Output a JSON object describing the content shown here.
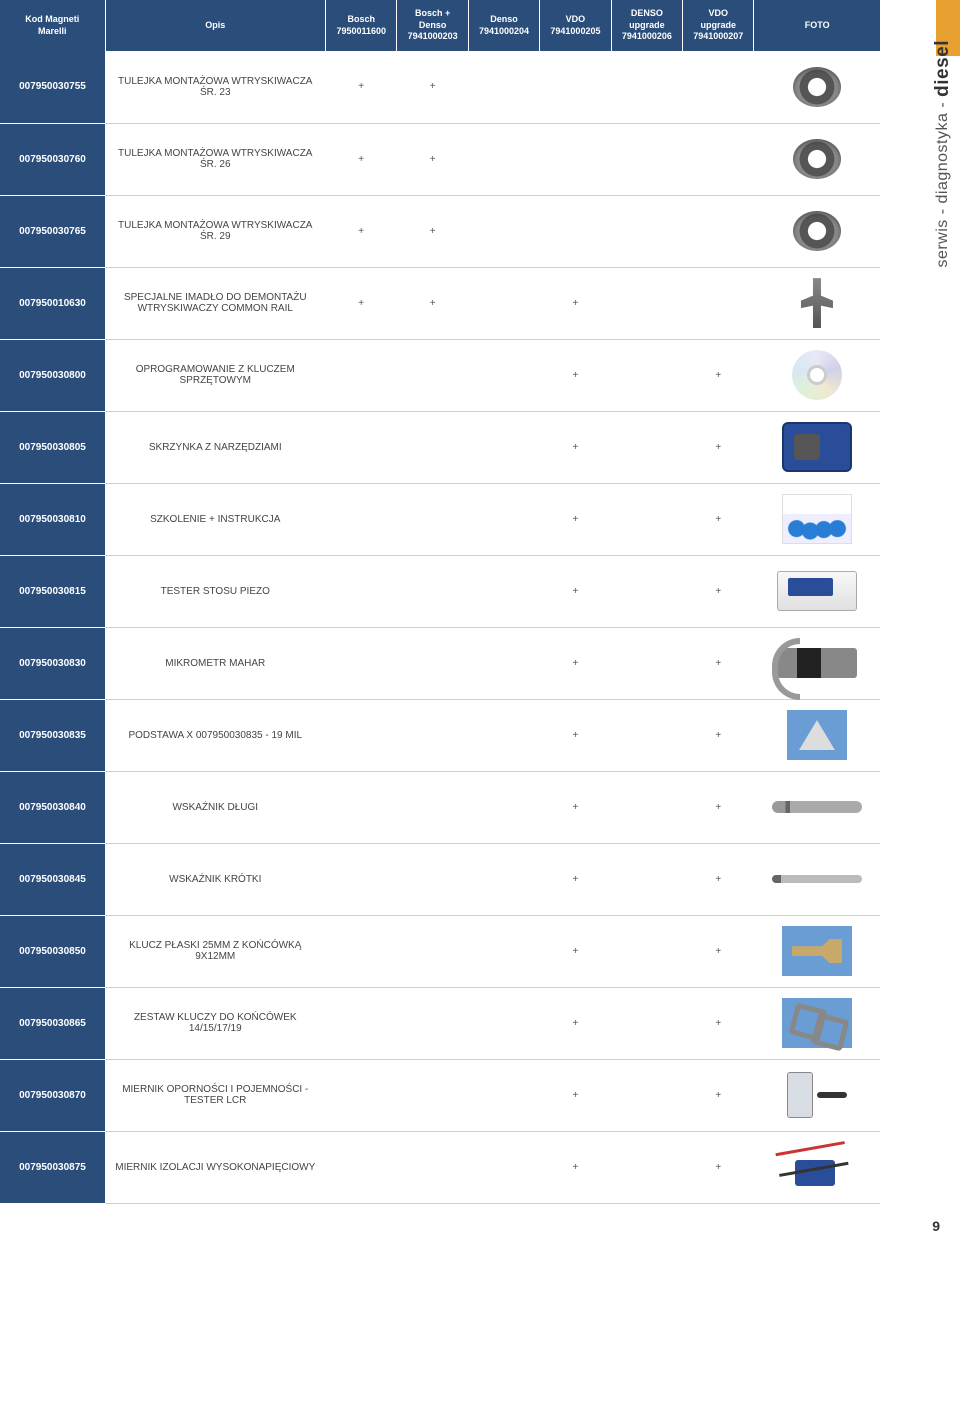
{
  "page_number": "9",
  "side_label_prefix": "serwis - diagnostyka - ",
  "side_label_bold": "diesel",
  "headers": {
    "code": "Kod Magneti\nMarelli",
    "desc": "Opis",
    "c1": "Bosch\n7950011600",
    "c2": "Bosch +\nDenso\n7941000203",
    "c3": "Denso\n7941000204",
    "c4": "VDO\n7941000205",
    "c5": "DENSO\nupgrade\n7941000206",
    "c6": "VDO\nupgrade\n7941000207",
    "foto": "FOTO"
  },
  "rows": [
    {
      "code": "007950030755",
      "desc": "TULEJKA MONTAŻOWA WTRYSKIWACZA ŚR. 23",
      "c1": "+",
      "c2": "+",
      "c3": "",
      "c4": "",
      "c5": "",
      "c6": "",
      "icon": "ring"
    },
    {
      "code": "007950030760",
      "desc": "TULEJKA MONTAŻOWA WTRYSKIWACZA ŚR. 26",
      "c1": "+",
      "c2": "+",
      "c3": "",
      "c4": "",
      "c5": "",
      "c6": "",
      "icon": "ring"
    },
    {
      "code": "007950030765",
      "desc": "TULEJKA MONTAŻOWA WTRYSKIWACZA ŚR. 29",
      "c1": "+",
      "c2": "+",
      "c3": "",
      "c4": "",
      "c5": "",
      "c6": "",
      "icon": "ring"
    },
    {
      "code": "007950010630",
      "desc": "SPECJALNE IMADŁO DO DEMONTAŻU WTRYSKIWACZY COMMON RAIL",
      "c1": "+",
      "c2": "+",
      "c3": "",
      "c4": "+",
      "c5": "",
      "c6": "",
      "icon": "clamp"
    },
    {
      "code": "007950030800",
      "desc": "OPROGRAMOWANIE Z KLUCZEM SPRZĘTOWYM",
      "c1": "",
      "c2": "",
      "c3": "",
      "c4": "+",
      "c5": "",
      "c6": "+",
      "icon": "cd"
    },
    {
      "code": "007950030805",
      "desc": "SKRZYNKA Z NARZĘDZIAMI",
      "c1": "",
      "c2": "",
      "c3": "",
      "c4": "+",
      "c5": "",
      "c6": "+",
      "icon": "case"
    },
    {
      "code": "007950030810",
      "desc": "SZKOLENIE + INSTRUKCJA",
      "c1": "",
      "c2": "",
      "c3": "",
      "c4": "+",
      "c5": "",
      "c6": "+",
      "icon": "training"
    },
    {
      "code": "007950030815",
      "desc": "TESTER STOSU PIEZO",
      "c1": "",
      "c2": "",
      "c3": "",
      "c4": "+",
      "c5": "",
      "c6": "+",
      "icon": "tester"
    },
    {
      "code": "007950030830",
      "desc": "MIKROMETR MAHAR",
      "c1": "",
      "c2": "",
      "c3": "",
      "c4": "+",
      "c5": "",
      "c6": "+",
      "icon": "micrometer"
    },
    {
      "code": "007950030835",
      "desc": "PODSTAWA X 007950030835 - 19 MIL",
      "c1": "",
      "c2": "",
      "c3": "",
      "c4": "+",
      "c5": "",
      "c6": "+",
      "icon": "base"
    },
    {
      "code": "007950030840",
      "desc": "WSKAŹNIK DŁUGI",
      "c1": "",
      "c2": "",
      "c3": "",
      "c4": "+",
      "c5": "",
      "c6": "+",
      "icon": "rod-long"
    },
    {
      "code": "007950030845",
      "desc": "WSKAŹNIK KRÓTKI",
      "c1": "",
      "c2": "",
      "c3": "",
      "c4": "+",
      "c5": "",
      "c6": "+",
      "icon": "rod-short"
    },
    {
      "code": "007950030850",
      "desc": "KLUCZ PŁASKI 25MM Z KOŃCÓWKĄ 9X12MM",
      "c1": "",
      "c2": "",
      "c3": "",
      "c4": "+",
      "c5": "",
      "c6": "+",
      "icon": "wrench"
    },
    {
      "code": "007950030865",
      "desc": "ZESTAW KLUCZY DO KOŃCÓWEK 14/15/17/19",
      "c1": "",
      "c2": "",
      "c3": "",
      "c4": "+",
      "c5": "",
      "c6": "+",
      "icon": "keyset"
    },
    {
      "code": "007950030870",
      "desc": "MIERNIK OPORNOŚCI I POJEMNOŚCI - TESTER LCR",
      "c1": "",
      "c2": "",
      "c3": "",
      "c4": "+",
      "c5": "",
      "c6": "+",
      "icon": "lcr"
    },
    {
      "code": "007950030875",
      "desc": "MIERNIK IZOLACJI WYSOKONAPIĘCIOWY",
      "c1": "",
      "c2": "",
      "c3": "",
      "c4": "+",
      "c5": "",
      "c6": "+",
      "icon": "insul"
    }
  ],
  "icon_map": {
    "ring": "icon-ring",
    "clamp": "icon-clamp",
    "cd": "icon-cd",
    "case": "icon-case",
    "training": "icon-training",
    "tester": "icon-tester",
    "micrometer": "icon-micrometer",
    "base": "icon-base",
    "rod-long": "icon-rod-long",
    "rod-short": "icon-rod-short",
    "wrench": "icon-wrench",
    "keyset": "icon-keyset",
    "lcr": "icon-lcr",
    "insul": "icon-insul"
  }
}
